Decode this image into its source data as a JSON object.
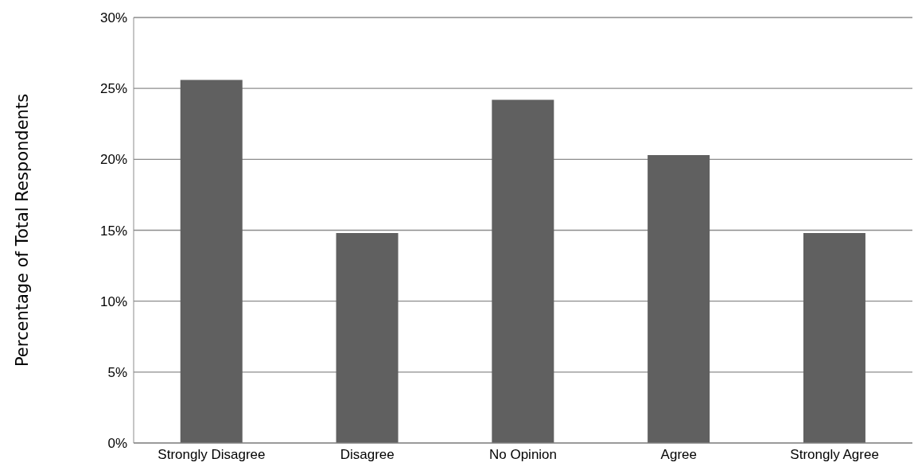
{
  "chart_data": {
    "type": "bar",
    "ylabel": "Percentage of Total Respondents",
    "categories": [
      "Strongly Disagree",
      "Disagree",
      "No Opinion",
      "Agree",
      "Strongly Agree"
    ],
    "values": [
      25.6,
      14.8,
      24.2,
      20.3,
      14.8
    ],
    "color": "#606060",
    "ylim": [
      0,
      30
    ],
    "yticks": [
      {
        "value": 0,
        "label": "0%"
      },
      {
        "value": 5,
        "label": "5%"
      },
      {
        "value": 10,
        "label": "10%"
      },
      {
        "value": 15,
        "label": "15%"
      },
      {
        "value": 20,
        "label": "20%"
      },
      {
        "value": 25,
        "label": "25%"
      },
      {
        "value": 30,
        "label": "30%"
      }
    ],
    "grid": "y",
    "legend": false
  }
}
